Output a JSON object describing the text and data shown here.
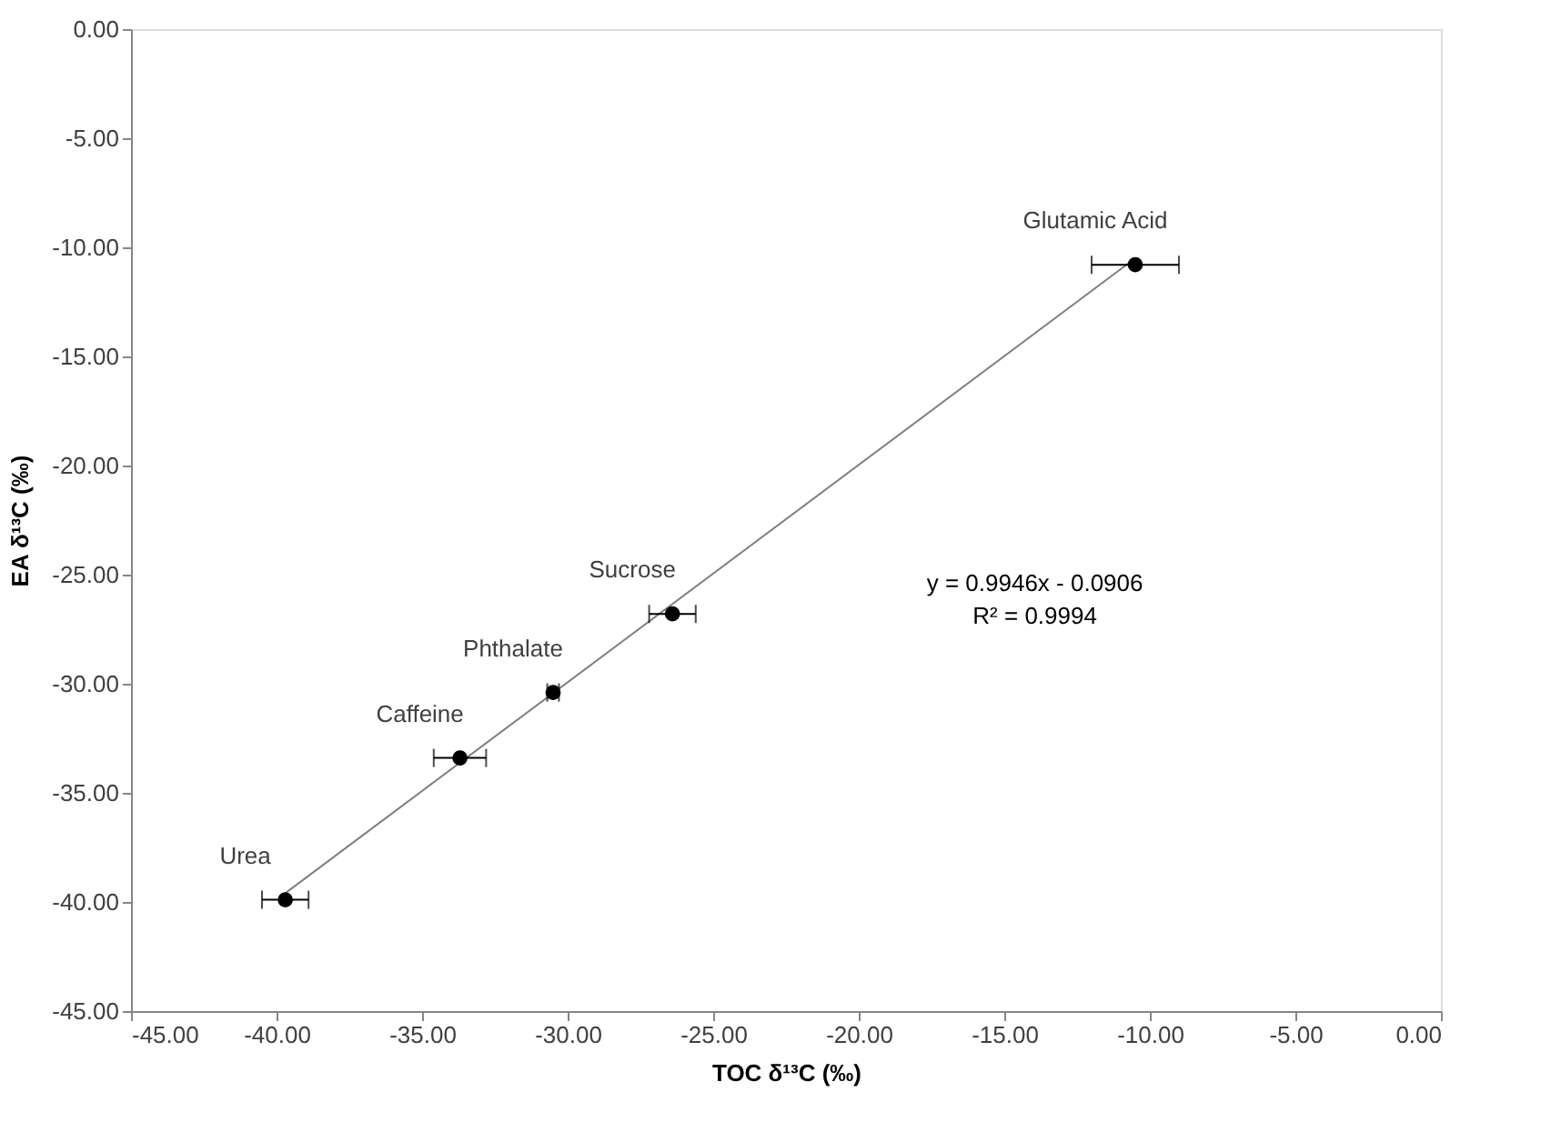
{
  "chart_data": {
    "type": "scatter",
    "xlabel": "TOC δ¹³C (‰)",
    "ylabel": "EA δ¹³C (‰)",
    "xlim": [
      -45,
      0
    ],
    "xticks": [
      {
        "value": -45,
        "label": "-45.00"
      },
      {
        "value": -40,
        "label": "-40.00"
      },
      {
        "value": -35,
        "label": "-35.00"
      },
      {
        "value": -30,
        "label": "-30.00"
      },
      {
        "value": -25,
        "label": "-25.00"
      },
      {
        "value": -20,
        "label": "-20.00"
      },
      {
        "value": -15,
        "label": "-15.00"
      },
      {
        "value": -10,
        "label": "-10.00"
      },
      {
        "value": -5,
        "label": "-5.00"
      },
      {
        "value": 0,
        "label": "0.00"
      }
    ],
    "ylim": [
      -45,
      0
    ],
    "yticks": [
      {
        "value": -45,
        "label": "-45.00"
      },
      {
        "value": -40,
        "label": "-40.00"
      },
      {
        "value": -35,
        "label": "-35.00"
      },
      {
        "value": -30,
        "label": "-30.00"
      },
      {
        "value": -25,
        "label": "-25.00"
      },
      {
        "value": -20,
        "label": "-20.00"
      },
      {
        "value": -15,
        "label": "-15.00"
      },
      {
        "value": -10,
        "label": "-10.00"
      },
      {
        "value": -5,
        "label": "-5.00"
      },
      {
        "value": 0,
        "label": "0.00"
      }
    ],
    "grid": false,
    "series": [
      {
        "marker": "circle",
        "color": "#000000",
        "x": [
          -39.7,
          -33.7,
          -30.5,
          -26.4,
          -10.5
        ],
        "values": [
          -39.9,
          -33.4,
          -30.4,
          -26.8,
          -10.8
        ],
        "xerrors": [
          0.8,
          0.9,
          0.2,
          0.8,
          1.5
        ]
      },
      {
        "type": "line",
        "color": "#7f7f7f",
        "x": [
          -39.7,
          -10.5
        ],
        "values": [
          -39.6,
          -10.5
        ],
        "line_style": "solid"
      }
    ],
    "annotations": [
      {
        "text": "Urea",
        "x": -39.7,
        "y": -39.9
      },
      {
        "text": "Caffeine",
        "x": -33.7,
        "y": -33.4
      },
      {
        "text": "Phthalate",
        "x": -30.5,
        "y": -30.4
      },
      {
        "text": "Sucrose",
        "x": -26.4,
        "y": -26.8
      },
      {
        "text": "Glutamic Acid",
        "x": -10.5,
        "y": -10.8
      },
      "y = 0.9946x - 0.0906",
      "R² = 0.9994"
    ]
  }
}
